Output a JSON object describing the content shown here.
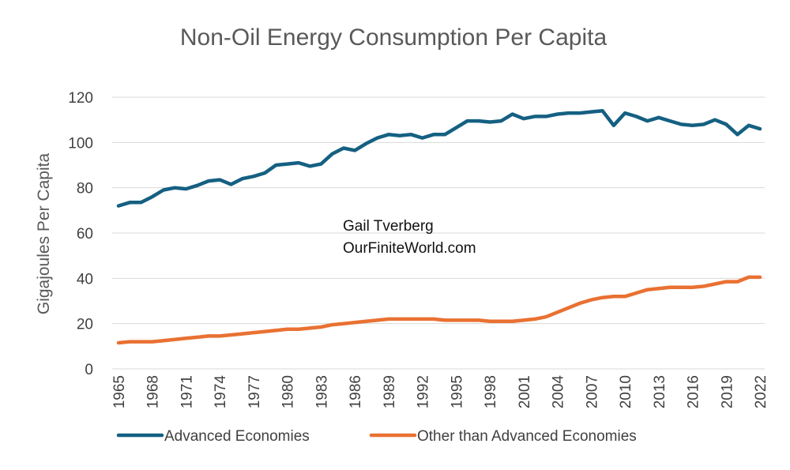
{
  "chart_data": {
    "type": "line",
    "title": "Non-Oil Energy Consumption Per Capita",
    "ylabel": "Gigajoules Per Capita",
    "xlabel": "",
    "ylim": [
      0,
      120
    ],
    "yticks": [
      0,
      20,
      40,
      60,
      80,
      100,
      120
    ],
    "grid": true,
    "legend_position": "bottom",
    "xtick_labels": [
      "1965",
      "1968",
      "1971",
      "1974",
      "1977",
      "1980",
      "1983",
      "1986",
      "1989",
      "1992",
      "1995",
      "1998",
      "2001",
      "2004",
      "2007",
      "2010",
      "2013",
      "2016",
      "2019",
      "2022"
    ],
    "x": [
      1965,
      1966,
      1967,
      1968,
      1969,
      1970,
      1971,
      1972,
      1973,
      1974,
      1975,
      1976,
      1977,
      1978,
      1979,
      1980,
      1981,
      1982,
      1983,
      1984,
      1985,
      1986,
      1987,
      1988,
      1989,
      1990,
      1991,
      1992,
      1993,
      1994,
      1995,
      1996,
      1997,
      1998,
      1999,
      2000,
      2001,
      2002,
      2003,
      2004,
      2005,
      2006,
      2007,
      2008,
      2009,
      2010,
      2011,
      2012,
      2013,
      2014,
      2015,
      2016,
      2017,
      2018,
      2019,
      2020,
      2021,
      2022
    ],
    "series": [
      {
        "name": "Advanced Economies",
        "color": "#156082",
        "values": [
          72,
          73.5,
          73.5,
          76,
          79,
          80,
          79.5,
          81,
          83,
          83.5,
          81.5,
          84,
          85,
          86.5,
          90,
          90.5,
          91,
          89.5,
          90.5,
          95,
          97.5,
          96.5,
          99.5,
          102,
          103.5,
          103,
          103.5,
          102,
          103.5,
          103.5,
          106.5,
          109.5,
          109.5,
          109,
          109.5,
          112.5,
          110.5,
          111.5,
          111.5,
          112.5,
          113,
          113,
          113.5,
          114,
          107.5,
          113,
          111.5,
          109.5,
          111,
          109.5,
          108,
          107.5,
          108,
          110,
          108,
          103.5,
          107.5,
          106
        ]
      },
      {
        "name": "Other than Advanced Economies",
        "color": "#E97132",
        "values": [
          11.5,
          12,
          12,
          12,
          12.5,
          13,
          13.5,
          14,
          14.5,
          14.5,
          15,
          15.5,
          16,
          16.5,
          17,
          17.5,
          17.5,
          18,
          18.5,
          19.5,
          20,
          20.5,
          21,
          21.5,
          22,
          22,
          22,
          22,
          22,
          21.5,
          21.5,
          21.5,
          21.5,
          21,
          21,
          21,
          21.5,
          22,
          23,
          25,
          27,
          29,
          30.5,
          31.5,
          32,
          32,
          33.5,
          35,
          35.5,
          36,
          36,
          36,
          36.5,
          37.5,
          38.5,
          38.5,
          40.5,
          40.5
        ]
      }
    ],
    "annotations": [
      "Gail Tverberg",
      "OurFiniteWorld.com"
    ]
  }
}
